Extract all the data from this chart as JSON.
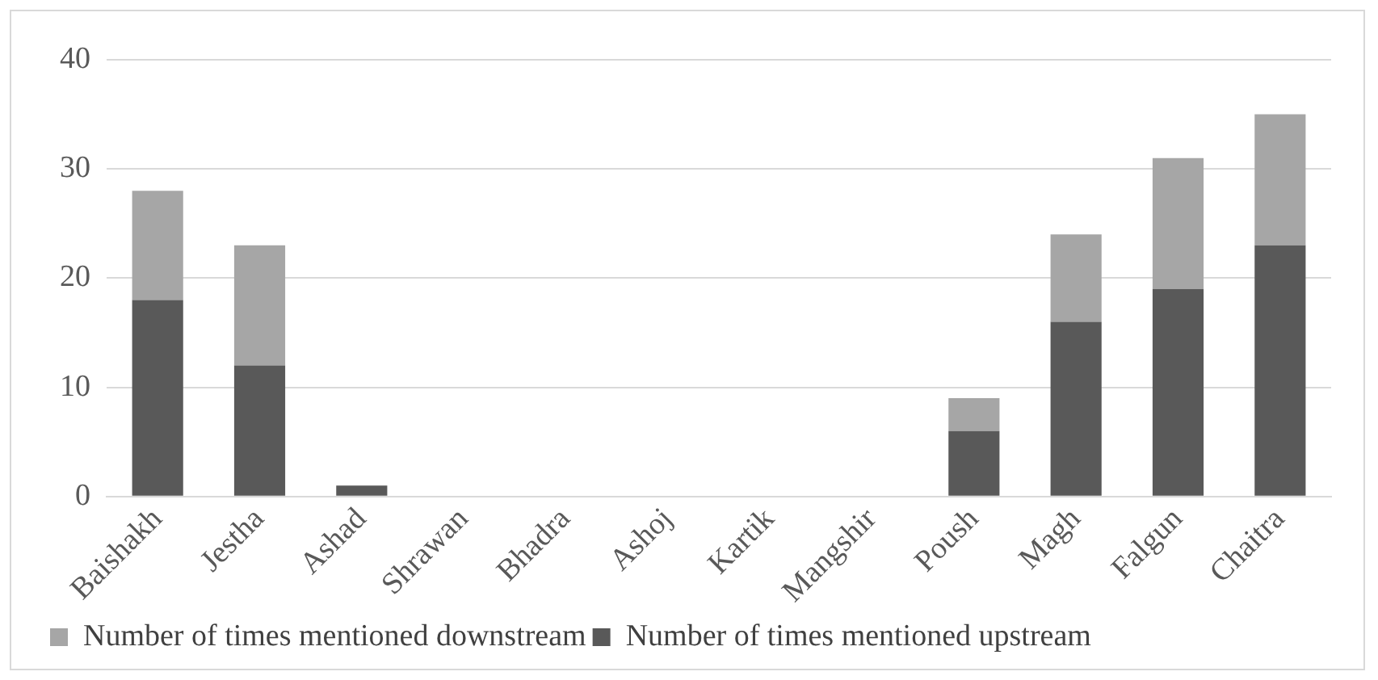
{
  "chart_data": {
    "type": "bar",
    "stacked": true,
    "categories": [
      "Baishakh",
      "Jestha",
      "Ashad",
      "Shrawan",
      "Bhadra",
      "Ashoj",
      "Kartik",
      "Mangshir",
      "Poush",
      "Magh",
      "Falgun",
      "Chaitra"
    ],
    "series": [
      {
        "name": "Number of times mentioned upstream",
        "color": "#595959",
        "values": [
          18,
          12,
          1,
          0,
          0,
          0,
          0,
          0,
          6,
          16,
          19,
          23
        ]
      },
      {
        "name": "Number of times mentioned downstream",
        "color": "#a6a6a6",
        "values": [
          10,
          11,
          0,
          0,
          0,
          0,
          0,
          0,
          3,
          8,
          12,
          12
        ]
      }
    ],
    "ylim": [
      0,
      40
    ],
    "yticks": [
      0,
      10,
      20,
      30,
      40
    ],
    "grid": "y",
    "legend": "bottom"
  }
}
